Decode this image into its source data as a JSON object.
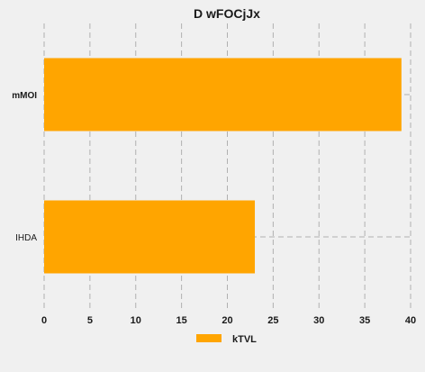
{
  "chart_data": {
    "type": "bar",
    "orientation": "horizontal",
    "title": "D wFOCjJx",
    "categories": [
      "mMOI",
      "IHDA"
    ],
    "series": [
      {
        "name": "kTVL",
        "values": [
          39,
          23
        ],
        "color": "#ffa500"
      }
    ],
    "xlabel": "",
    "ylabel": "",
    "xlim": [
      0,
      40
    ],
    "xticks": [
      "0",
      "5",
      "10",
      "15",
      "20",
      "25",
      "30",
      "35",
      "40"
    ],
    "grid": true,
    "legend_position": "bottom-center",
    "background": "#f0f0f0"
  }
}
